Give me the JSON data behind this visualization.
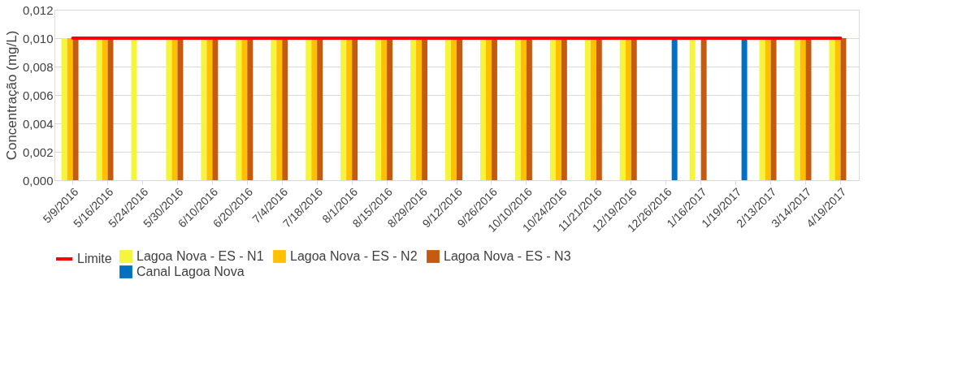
{
  "chart_data": {
    "type": "bar",
    "ylabel": "Concentração (mg/L)",
    "categories": [
      "5/9/2016",
      "5/16/2016",
      "5/24/2016",
      "5/30/2016",
      "6/10/2016",
      "6/20/2016",
      "7/4/2016",
      "7/18/2016",
      "8/1/2016",
      "8/15/2016",
      "8/29/2016",
      "9/12/2016",
      "9/26/2016",
      "10/10/2016",
      "10/24/2016",
      "11/21/2016",
      "12/19/2016",
      "12/26/2016",
      "1/16/2017",
      "1/19/2017",
      "2/13/2017",
      "3/14/2017",
      "4/19/2017"
    ],
    "series": [
      {
        "name": "Lagoa Nova - ES - N1",
        "color": "#f5f53c",
        "values": [
          0.01,
          0.01,
          0.01,
          0.01,
          0.01,
          0.01,
          0.01,
          0.01,
          0.01,
          0.01,
          0.01,
          0.01,
          0.01,
          0.01,
          0.01,
          0.01,
          0.01,
          null,
          0.01,
          null,
          0.01,
          0.01,
          0.01
        ]
      },
      {
        "name": "Lagoa Nova - ES - N2",
        "color": "#ffc000",
        "values": [
          0.01,
          0.01,
          null,
          0.01,
          0.01,
          0.01,
          0.01,
          0.01,
          0.01,
          0.01,
          0.01,
          0.01,
          0.01,
          0.01,
          0.01,
          0.01,
          0.01,
          null,
          null,
          null,
          0.01,
          0.01,
          0.01
        ]
      },
      {
        "name": "Lagoa Nova - ES - N3",
        "color": "#c55a11",
        "values": [
          0.01,
          0.01,
          null,
          0.01,
          0.01,
          0.01,
          0.01,
          0.01,
          0.01,
          0.01,
          0.01,
          0.01,
          0.01,
          0.01,
          0.01,
          0.01,
          0.01,
          null,
          0.01,
          null,
          0.01,
          0.01,
          0.01
        ]
      },
      {
        "name": "Canal Lagoa Nova",
        "color": "#0070c0",
        "values": [
          null,
          null,
          null,
          null,
          null,
          null,
          null,
          null,
          null,
          null,
          null,
          null,
          null,
          null,
          null,
          null,
          null,
          0.01,
          null,
          0.01,
          null,
          null,
          null
        ]
      },
      {
        "name": "Limite",
        "type": "line",
        "color": "#ff0000",
        "values": [
          0.01,
          0.01,
          0.01,
          0.01,
          0.01,
          0.01,
          0.01,
          0.01,
          0.01,
          0.01,
          0.01,
          0.01,
          0.01,
          0.01,
          0.01,
          0.01,
          0.01,
          0.01,
          0.01,
          0.01,
          0.01,
          0.01,
          0.01
        ]
      }
    ],
    "ylim": [
      0,
      0.012
    ],
    "yticks": [
      {
        "value": 0,
        "label": "0,000"
      },
      {
        "value": 0.002,
        "label": "0,002"
      },
      {
        "value": 0.004,
        "label": "0,004"
      },
      {
        "value": 0.006,
        "label": "0,006"
      },
      {
        "value": 0.008,
        "label": "0,008"
      },
      {
        "value": 0.01,
        "label": "0,010"
      },
      {
        "value": 0.012,
        "label": "0,012"
      }
    ],
    "grid": "y",
    "legend": "bottom",
    "line_style": "solid"
  }
}
